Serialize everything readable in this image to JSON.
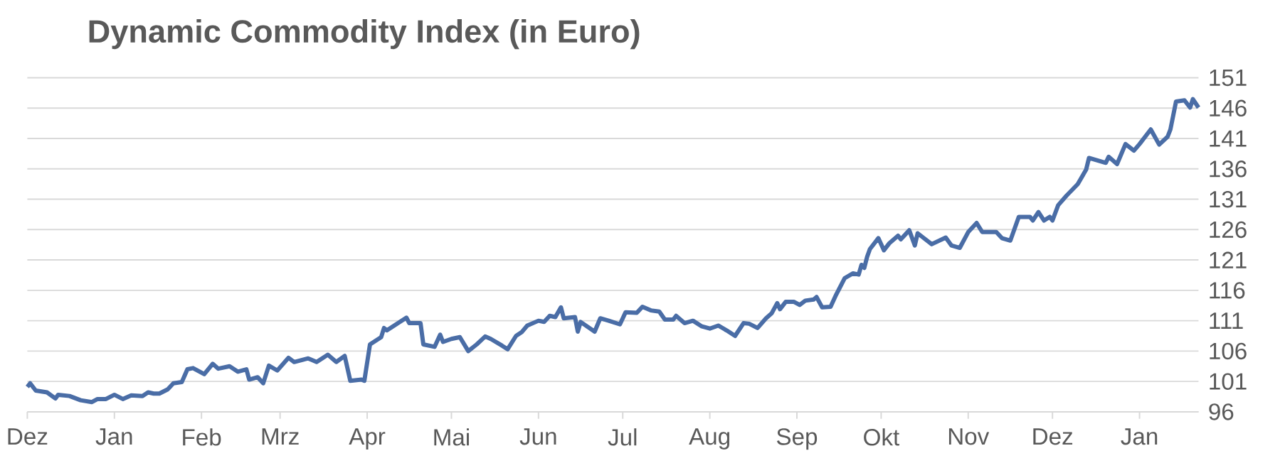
{
  "chart_data": {
    "type": "line",
    "title": "Dynamic Commodity Index (in Euro)",
    "categories": [
      "Dez",
      null,
      null,
      null,
      null,
      null,
      null,
      null,
      null,
      null,
      null,
      null,
      null,
      null,
      null,
      null,
      null,
      null,
      null,
      null,
      null,
      null,
      null,
      null,
      null,
      null,
      null,
      null,
      null,
      null,
      null,
      "Jan",
      null,
      null,
      null,
      null,
      null,
      null,
      null,
      null,
      null,
      null,
      null,
      null,
      null,
      null,
      null,
      null,
      null,
      null,
      null,
      null,
      null,
      null,
      null,
      null,
      null,
      null,
      null,
      null,
      null,
      null,
      "Feb",
      null,
      null,
      null,
      null,
      null,
      null,
      null,
      null,
      null,
      null,
      null,
      null,
      null,
      null,
      null,
      null,
      null,
      null,
      null,
      null,
      null,
      null,
      null,
      null,
      null,
      null,
      null,
      "Mrz",
      null,
      null,
      null,
      null,
      null,
      null,
      null,
      null,
      null,
      null,
      null,
      null,
      null,
      null,
      null,
      null,
      null,
      null,
      null,
      null,
      null,
      null,
      null,
      null,
      null,
      null,
      null,
      null,
      null,
      null,
      "Apr",
      null,
      null,
      null,
      null,
      null,
      null,
      null,
      null,
      null,
      null,
      null,
      null,
      null,
      null,
      null,
      null,
      null,
      null,
      null,
      null,
      null,
      null,
      null,
      null,
      null,
      null,
      null,
      null,
      null,
      "Mai",
      null,
      null,
      null,
      null,
      null,
      null,
      null,
      null,
      null,
      null,
      null,
      null,
      null,
      null,
      null,
      null,
      null,
      null,
      null,
      null,
      null,
      null,
      null,
      null,
      null,
      null,
      null,
      null,
      null,
      null,
      "Jun",
      null,
      null,
      null,
      null,
      null,
      null,
      null,
      null,
      null,
      null,
      null,
      null,
      null,
      null,
      null,
      null,
      null,
      null,
      null,
      null,
      null,
      null,
      null,
      null,
      null,
      null,
      null,
      null,
      null,
      "Jul",
      null,
      null,
      null,
      null,
      null,
      null,
      null,
      null,
      null,
      null,
      null,
      null,
      null,
      null,
      null,
      null,
      null,
      null,
      null,
      null,
      null,
      null,
      null,
      null,
      null,
      null,
      null,
      null,
      null,
      null,
      "Aug",
      null,
      null,
      null,
      null,
      null,
      null,
      null,
      null,
      null,
      null,
      null,
      null,
      null,
      null,
      null,
      null,
      null,
      null,
      null,
      null,
      null,
      null,
      null,
      null,
      null,
      null,
      null,
      null,
      null,
      null,
      "Sep",
      null,
      null,
      null,
      null,
      null,
      null,
      null,
      null,
      null,
      null,
      null,
      null,
      null,
      null,
      null,
      null,
      null,
      null,
      null,
      null,
      null,
      null,
      null,
      null,
      null,
      null,
      null,
      null,
      null,
      "Okt",
      null,
      null,
      null,
      null,
      null,
      null,
      null,
      null,
      null,
      null,
      null,
      null,
      null,
      null,
      null,
      null,
      null,
      null,
      null,
      null,
      null,
      null,
      null,
      null,
      null,
      null,
      null,
      null,
      null,
      null,
      "Nov",
      null,
      null,
      null,
      null,
      null,
      null,
      null,
      null,
      null,
      null,
      null,
      null,
      null,
      null,
      null,
      null,
      null,
      null,
      null,
      null,
      null,
      null,
      null,
      null,
      null,
      null,
      null,
      null,
      null,
      "Dez",
      null,
      null,
      null,
      null,
      null,
      null,
      null,
      null,
      null,
      null,
      null,
      null,
      null,
      null,
      null,
      null,
      null,
      null,
      null,
      null,
      null,
      null,
      null,
      null,
      null,
      null,
      null,
      null,
      null,
      null,
      "Jan",
      null,
      null,
      null,
      null,
      null,
      null,
      null,
      null,
      null,
      null,
      null,
      null,
      null,
      null,
      null,
      null,
      null,
      null,
      null,
      null,
      null
    ],
    "series": [
      {
        "color": "#4a6da6",
        "values": [
          100.1,
          100.7,
          null,
          99.5,
          null,
          null,
          null,
          99.2,
          null,
          null,
          98.2,
          98.8,
          null,
          null,
          null,
          98.6,
          null,
          null,
          null,
          97.9,
          null,
          null,
          null,
          97.6,
          null,
          98.1,
          null,
          null,
          98.1,
          null,
          null,
          98.8,
          null,
          null,
          98.1,
          null,
          null,
          98.7,
          null,
          null,
          null,
          98.6,
          null,
          99.2,
          null,
          99.0,
          null,
          99.0,
          null,
          null,
          99.7,
          null,
          100.7,
          null,
          null,
          100.9,
          null,
          103.0,
          null,
          103.2,
          null,
          null,
          null,
          102.2,
          null,
          null,
          103.9,
          null,
          103.1,
          null,
          null,
          null,
          103.5,
          null,
          null,
          102.6,
          null,
          null,
          103.0,
          101.3,
          null,
          null,
          101.7,
          null,
          100.7,
          null,
          103.6,
          null,
          null,
          102.8,
          null,
          null,
          null,
          104.9,
          null,
          104.2,
          null,
          null,
          null,
          null,
          104.8,
          null,
          null,
          104.2,
          null,
          null,
          null,
          105.4,
          null,
          null,
          104.2,
          null,
          null,
          105.2,
          null,
          101.1,
          null,
          null,
          null,
          101.3,
          101.1,
          null,
          107.1,
          null,
          null,
          null,
          108.3,
          109.8,
          109.4,
          null,
          null,
          null,
          null,
          null,
          null,
          111.5,
          110.6,
          null,
          null,
          null,
          110.6,
          107.1,
          null,
          null,
          null,
          106.7,
          null,
          108.7,
          107.5,
          null,
          null,
          108.0,
          null,
          null,
          108.3,
          null,
          null,
          106.0,
          null,
          null,
          107.1,
          null,
          null,
          108.4,
          null,
          108.0,
          null,
          null,
          null,
          106.9,
          null,
          106.3,
          null,
          null,
          108.5,
          null,
          109.1,
          null,
          110.2,
          null,
          null,
          null,
          111.0,
          null,
          110.8,
          null,
          111.8,
          null,
          111.6,
          null,
          113.2,
          111.4,
          null,
          null,
          null,
          111.6,
          109.2,
          110.8,
          null,
          null,
          null,
          null,
          109.2,
          null,
          111.4,
          null,
          null,
          111.0,
          null,
          null,
          null,
          110.4,
          null,
          112.4,
          null,
          null,
          null,
          112.3,
          null,
          113.3,
          null,
          null,
          112.7,
          null,
          null,
          112.5,
          null,
          111.2,
          null,
          null,
          111.2,
          111.8,
          null,
          null,
          110.6,
          null,
          null,
          111.0,
          null,
          null,
          110.1,
          null,
          null,
          109.7,
          null,
          null,
          110.2,
          null,
          null,
          109.4,
          null,
          null,
          108.5,
          null,
          null,
          110.6,
          null,
          110.5,
          null,
          null,
          109.8,
          null,
          null,
          111.4,
          null,
          112.2,
          null,
          113.9,
          112.9,
          null,
          114.1,
          null,
          null,
          114.1,
          null,
          113.6,
          null,
          114.3,
          null,
          null,
          114.5,
          114.9,
          null,
          113.2,
          null,
          null,
          113.3,
          null,
          115.3,
          null,
          null,
          118.0,
          null,
          null,
          118.8,
          null,
          118.6,
          120.2,
          119.7,
          121.5,
          122.8,
          null,
          null,
          124.6,
          null,
          122.6,
          null,
          123.8,
          null,
          null,
          125.0,
          124.4,
          null,
          null,
          125.9,
          null,
          123.4,
          125.4,
          null,
          null,
          null,
          null,
          123.6,
          null,
          null,
          null,
          null,
          124.7,
          null,
          123.4,
          null,
          null,
          123.0,
          null,
          null,
          125.6,
          null,
          null,
          127.1,
          null,
          125.6,
          null,
          null,
          null,
          null,
          125.6,
          null,
          124.6,
          null,
          null,
          124.2,
          null,
          null,
          128.1,
          null,
          null,
          null,
          128.1,
          127.5,
          null,
          128.9,
          null,
          127.5,
          null,
          128.1,
          127.5,
          null,
          130.0,
          null,
          null,
          131.6,
          null,
          null,
          null,
          133.5,
          null,
          null,
          135.9,
          137.8,
          null,
          null,
          null,
          null,
          null,
          137.0,
          138.0,
          null,
          null,
          136.8,
          null,
          null,
          140.1,
          null,
          null,
          139.0,
          null,
          140.1,
          null,
          null,
          null,
          142.5,
          null,
          null,
          140.0,
          null,
          null,
          141.3,
          142.5,
          null,
          147.1,
          null,
          null,
          147.3,
          null,
          146.1,
          147.5,
          null,
          146.1
        ]
      }
    ],
    "ylim": [
      96,
      151
    ],
    "yticks": [
      96,
      101,
      106,
      111,
      116,
      121,
      126,
      131,
      136,
      141,
      146,
      151
    ],
    "grid": "y"
  }
}
